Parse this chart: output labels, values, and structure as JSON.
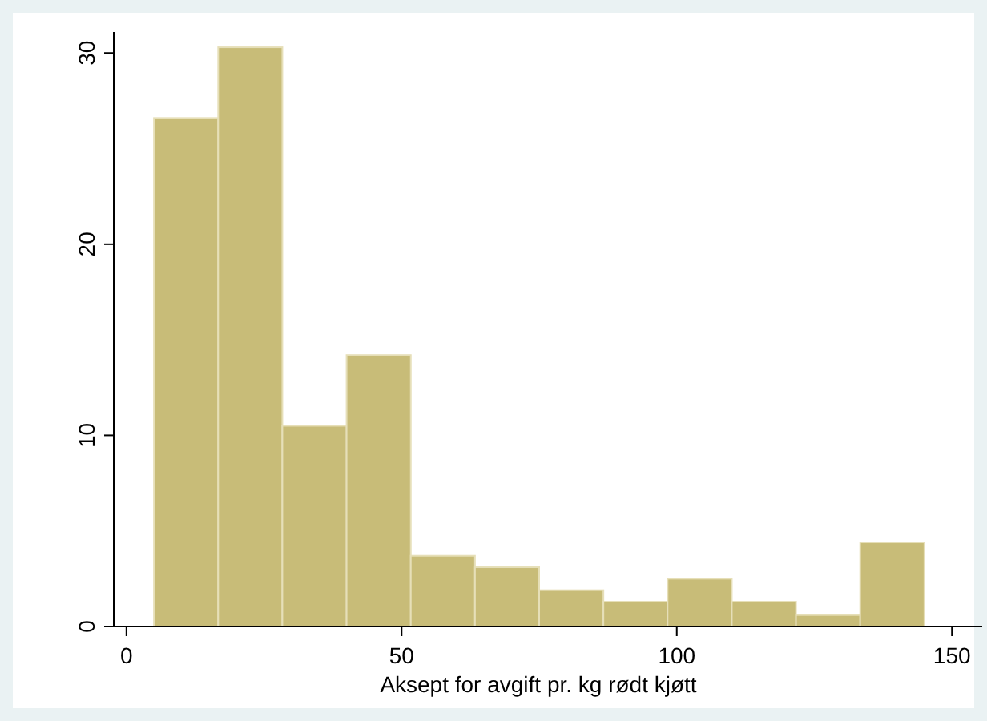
{
  "chart_data": {
    "type": "histogram",
    "xlabel": "Aksept for avgift pr. kg rødt kjøtt",
    "bins": [
      5,
      16.67,
      28.33,
      40,
      51.67,
      63.33,
      75,
      86.67,
      98.33,
      110,
      121.67,
      133.33,
      145
    ],
    "values": [
      26.6,
      30.3,
      10.5,
      14.2,
      3.7,
      3.1,
      1.9,
      1.3,
      2.5,
      1.3,
      0.6,
      4.4
    ],
    "color": "#c8bc78",
    "xlim": [
      -2.3,
      155.5
    ],
    "xticks": [
      0,
      50,
      100,
      150
    ],
    "ylim": [
      0,
      31.1
    ],
    "yticks": [
      0,
      10,
      20,
      30
    ],
    "grid": false
  }
}
